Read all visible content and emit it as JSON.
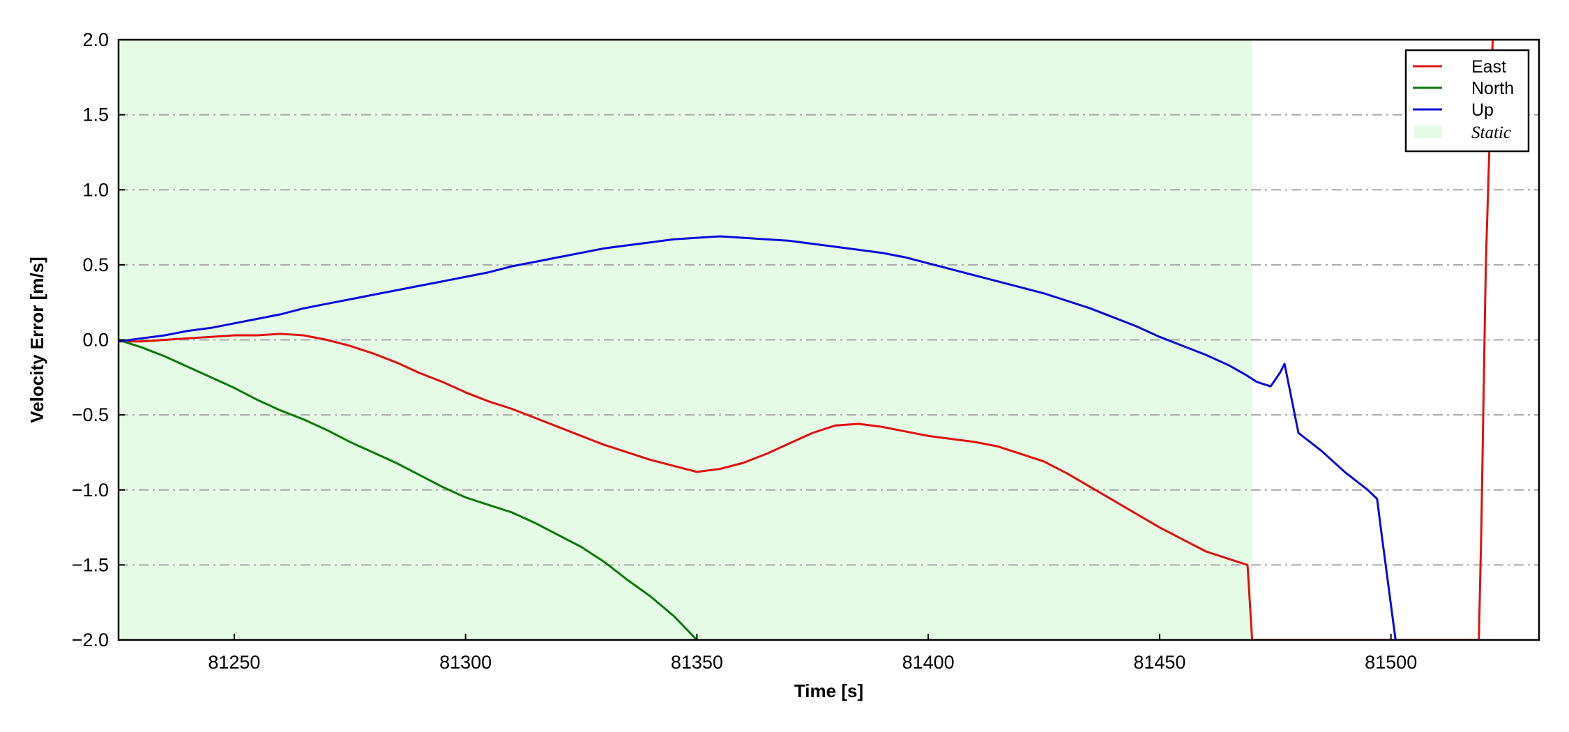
{
  "chart_data": {
    "type": "line",
    "title": "",
    "xlabel": "Time [s]",
    "ylabel": "Velocity Error [m/s]",
    "xlim": [
      81225,
      81532
    ],
    "ylim": [
      -2.0,
      2.0
    ],
    "x_ticks": [
      81250,
      81300,
      81350,
      81400,
      81450,
      81500
    ],
    "x_tick_labels": [
      "81250",
      "81300",
      "81350",
      "81400",
      "81450",
      "81500"
    ],
    "y_ticks": [
      -2.0,
      -1.5,
      -1.0,
      -0.5,
      0.0,
      0.5,
      1.0,
      1.5,
      2.0
    ],
    "y_tick_labels": [
      "−2.0",
      "−1.5",
      "−1.0",
      "−0.5",
      "0.0",
      "0.5",
      "1.0",
      "1.5",
      "2.0"
    ],
    "grid": "horizontal dash-dot",
    "legend_position": "top-right",
    "shaded_region": {
      "name": "Static",
      "x": [
        81225,
        81470
      ],
      "color": "#e6fbe6"
    },
    "series": [
      {
        "name": "East",
        "color": "#e01010",
        "points": [
          [
            81225,
            -0.01
          ],
          [
            81230,
            -0.01
          ],
          [
            81235,
            0.0
          ],
          [
            81240,
            0.01
          ],
          [
            81245,
            0.02
          ],
          [
            81250,
            0.03
          ],
          [
            81255,
            0.03
          ],
          [
            81260,
            0.04
          ],
          [
            81265,
            0.03
          ],
          [
            81270,
            0.0
          ],
          [
            81275,
            -0.04
          ],
          [
            81280,
            -0.09
          ],
          [
            81285,
            -0.15
          ],
          [
            81290,
            -0.22
          ],
          [
            81295,
            -0.28
          ],
          [
            81300,
            -0.35
          ],
          [
            81305,
            -0.41
          ],
          [
            81310,
            -0.46
          ],
          [
            81315,
            -0.52
          ],
          [
            81320,
            -0.58
          ],
          [
            81325,
            -0.64
          ],
          [
            81330,
            -0.7
          ],
          [
            81335,
            -0.75
          ],
          [
            81340,
            -0.8
          ],
          [
            81345,
            -0.84
          ],
          [
            81350,
            -0.88
          ],
          [
            81355,
            -0.86
          ],
          [
            81360,
            -0.82
          ],
          [
            81365,
            -0.76
          ],
          [
            81370,
            -0.69
          ],
          [
            81375,
            -0.62
          ],
          [
            81380,
            -0.57
          ],
          [
            81385,
            -0.56
          ],
          [
            81390,
            -0.58
          ],
          [
            81395,
            -0.61
          ],
          [
            81400,
            -0.64
          ],
          [
            81405,
            -0.66
          ],
          [
            81410,
            -0.68
          ],
          [
            81415,
            -0.71
          ],
          [
            81420,
            -0.76
          ],
          [
            81425,
            -0.81
          ],
          [
            81430,
            -0.89
          ],
          [
            81435,
            -0.98
          ],
          [
            81440,
            -1.07
          ],
          [
            81445,
            -1.16
          ],
          [
            81450,
            -1.25
          ],
          [
            81455,
            -1.33
          ],
          [
            81460,
            -1.41
          ],
          [
            81465,
            -1.46
          ],
          [
            81469,
            -1.5
          ],
          [
            81470,
            -2.0
          ],
          [
            81519,
            -2.0
          ],
          [
            81519.5,
            -1.3
          ],
          [
            81520.5,
            0.5
          ],
          [
            81522,
            2.0
          ]
        ]
      },
      {
        "name": "North",
        "color": "#0b7a0b",
        "points": [
          [
            81225,
            0.0
          ],
          [
            81230,
            -0.05
          ],
          [
            81235,
            -0.11
          ],
          [
            81240,
            -0.18
          ],
          [
            81245,
            -0.25
          ],
          [
            81250,
            -0.32
          ],
          [
            81255,
            -0.4
          ],
          [
            81260,
            -0.47
          ],
          [
            81265,
            -0.53
          ],
          [
            81270,
            -0.6
          ],
          [
            81275,
            -0.68
          ],
          [
            81280,
            -0.75
          ],
          [
            81285,
            -0.82
          ],
          [
            81290,
            -0.9
          ],
          [
            81295,
            -0.98
          ],
          [
            81300,
            -1.05
          ],
          [
            81305,
            -1.1
          ],
          [
            81310,
            -1.15
          ],
          [
            81315,
            -1.22
          ],
          [
            81320,
            -1.3
          ],
          [
            81325,
            -1.38
          ],
          [
            81330,
            -1.48
          ],
          [
            81335,
            -1.6
          ],
          [
            81340,
            -1.71
          ],
          [
            81345,
            -1.84
          ],
          [
            81350,
            -2.0
          ]
        ]
      },
      {
        "name": "Up",
        "color": "#0a0ad8",
        "points": [
          [
            81225,
            -0.01
          ],
          [
            81230,
            0.01
          ],
          [
            81235,
            0.03
          ],
          [
            81240,
            0.06
          ],
          [
            81245,
            0.08
          ],
          [
            81250,
            0.11
          ],
          [
            81255,
            0.14
          ],
          [
            81260,
            0.17
          ],
          [
            81265,
            0.21
          ],
          [
            81270,
            0.24
          ],
          [
            81275,
            0.27
          ],
          [
            81280,
            0.3
          ],
          [
            81285,
            0.33
          ],
          [
            81290,
            0.36
          ],
          [
            81295,
            0.39
          ],
          [
            81300,
            0.42
          ],
          [
            81305,
            0.45
          ],
          [
            81310,
            0.49
          ],
          [
            81315,
            0.52
          ],
          [
            81320,
            0.55
          ],
          [
            81325,
            0.58
          ],
          [
            81330,
            0.61
          ],
          [
            81335,
            0.63
          ],
          [
            81340,
            0.65
          ],
          [
            81345,
            0.67
          ],
          [
            81350,
            0.68
          ],
          [
            81355,
            0.69
          ],
          [
            81360,
            0.68
          ],
          [
            81365,
            0.67
          ],
          [
            81370,
            0.66
          ],
          [
            81375,
            0.64
          ],
          [
            81380,
            0.62
          ],
          [
            81385,
            0.6
          ],
          [
            81390,
            0.58
          ],
          [
            81395,
            0.55
          ],
          [
            81400,
            0.51
          ],
          [
            81405,
            0.47
          ],
          [
            81410,
            0.43
          ],
          [
            81415,
            0.39
          ],
          [
            81420,
            0.35
          ],
          [
            81425,
            0.31
          ],
          [
            81430,
            0.26
          ],
          [
            81435,
            0.21
          ],
          [
            81440,
            0.15
          ],
          [
            81445,
            0.09
          ],
          [
            81450,
            0.02
          ],
          [
            81455,
            -0.04
          ],
          [
            81460,
            -0.1
          ],
          [
            81465,
            -0.17
          ],
          [
            81469,
            -0.24
          ],
          [
            81471,
            -0.28
          ],
          [
            81474,
            -0.31
          ],
          [
            81476,
            -0.22
          ],
          [
            81477,
            -0.16
          ],
          [
            81480,
            -0.62
          ],
          [
            81485,
            -0.74
          ],
          [
            81490,
            -0.88
          ],
          [
            81495,
            -1.0
          ],
          [
            81497,
            -1.06
          ],
          [
            81498,
            -1.3
          ],
          [
            81501,
            -2.0
          ]
        ]
      }
    ]
  }
}
